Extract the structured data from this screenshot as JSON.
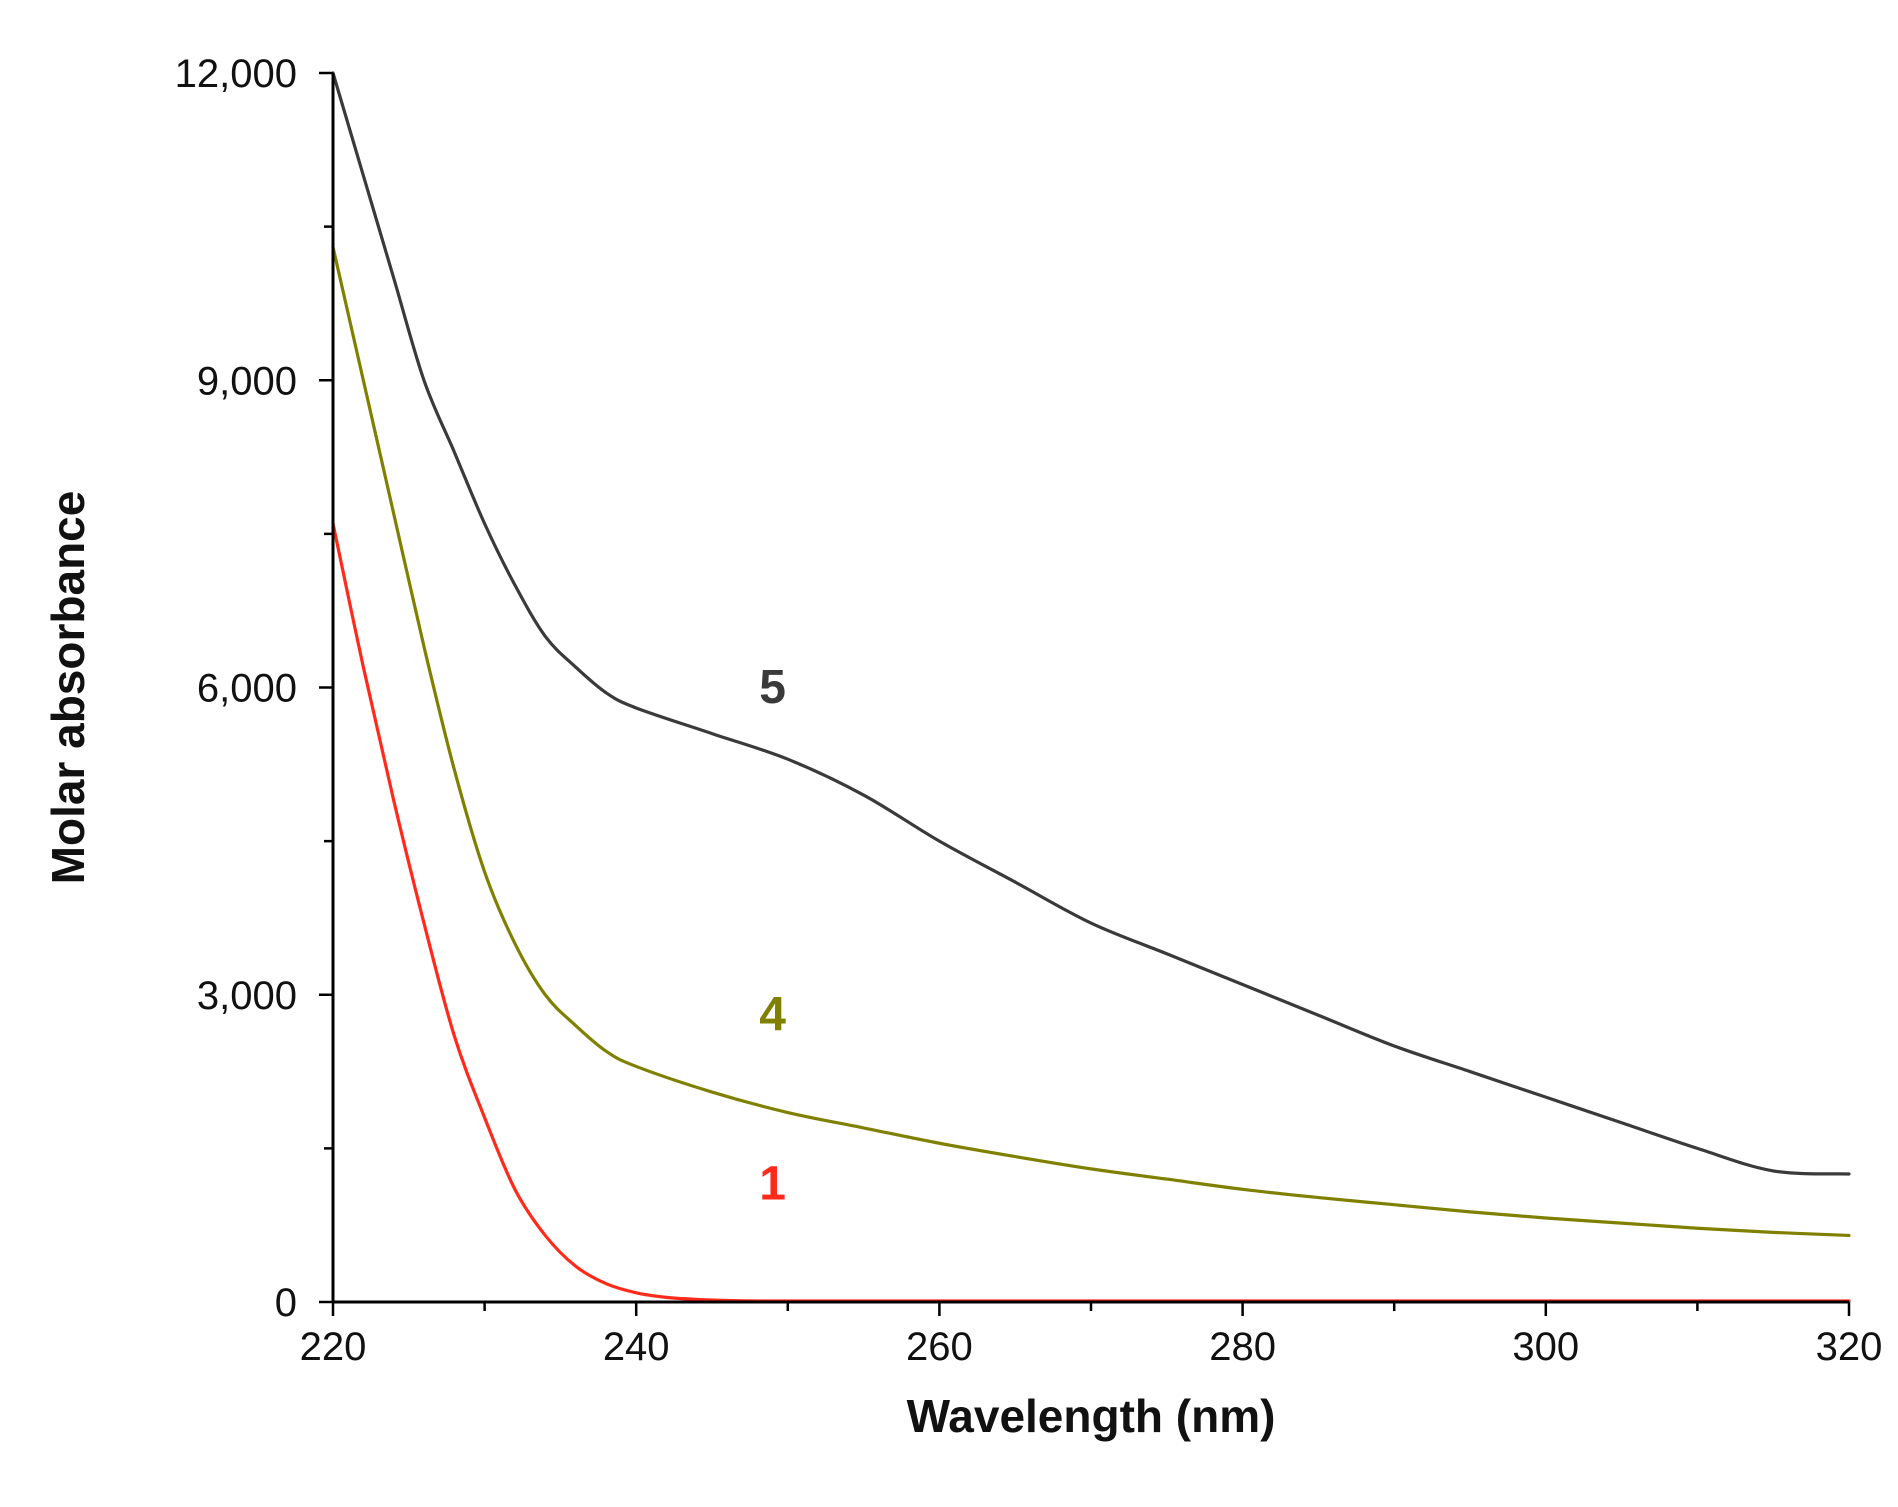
{
  "chart_data": {
    "type": "line",
    "title": "",
    "xlabel": "Wavelength (nm)",
    "ylabel": "Molar absorbance",
    "xlim": [
      220,
      320
    ],
    "ylim": [
      0,
      12000
    ],
    "x_ticks": [
      220,
      240,
      260,
      280,
      300,
      320
    ],
    "x_tick_labels": [
      "220",
      "240",
      "260",
      "280",
      "300",
      "320"
    ],
    "y_ticks": [
      0,
      3000,
      6000,
      9000,
      12000
    ],
    "y_tick_labels": [
      "0",
      "3,000",
      "6,000",
      "9,000",
      "12,000"
    ],
    "grid": false,
    "legend": "inline labels",
    "series": [
      {
        "name": "5",
        "label": "5",
        "color": "#3a3a3a",
        "label_at": [
          249,
          5850
        ],
        "x": [
          220,
          222,
          224,
          226,
          228,
          230,
          232,
          234,
          236,
          238,
          240,
          245,
          250,
          255,
          260,
          265,
          270,
          275,
          280,
          285,
          290,
          295,
          300,
          305,
          310,
          315,
          320
        ],
        "y": [
          12000,
          11000,
          10000,
          9000,
          8300,
          7600,
          7000,
          6500,
          6200,
          5950,
          5800,
          5550,
          5300,
          4950,
          4500,
          4100,
          3700,
          3400,
          3100,
          2800,
          2500,
          2250,
          2000,
          1750,
          1500,
          1280,
          1250
        ]
      },
      {
        "name": "4",
        "label": "4",
        "color": "#808000",
        "label_at": [
          249,
          2650
        ],
        "x": [
          220,
          222,
          224,
          226,
          228,
          230,
          232,
          234,
          236,
          238,
          240,
          245,
          250,
          255,
          260,
          265,
          270,
          275,
          280,
          285,
          290,
          295,
          300,
          305,
          310,
          315,
          320
        ],
        "y": [
          10300,
          9000,
          7700,
          6400,
          5200,
          4200,
          3500,
          3000,
          2700,
          2450,
          2300,
          2050,
          1850,
          1700,
          1550,
          1420,
          1300,
          1200,
          1100,
          1020,
          950,
          880,
          820,
          770,
          720,
          680,
          650
        ]
      },
      {
        "name": "1",
        "label": "1",
        "color": "#ff2a1a",
        "label_at": [
          249,
          1000
        ],
        "x": [
          220,
          222,
          224,
          226,
          228,
          230,
          232,
          234,
          236,
          238,
          240,
          242,
          244,
          246,
          248,
          250,
          255,
          260,
          270,
          280,
          290,
          300,
          310,
          320
        ],
        "y": [
          7600,
          6200,
          4900,
          3700,
          2600,
          1800,
          1100,
          650,
          350,
          180,
          90,
          45,
          25,
          15,
          10,
          10,
          10,
          10,
          10,
          10,
          10,
          10,
          10,
          10
        ]
      }
    ]
  }
}
